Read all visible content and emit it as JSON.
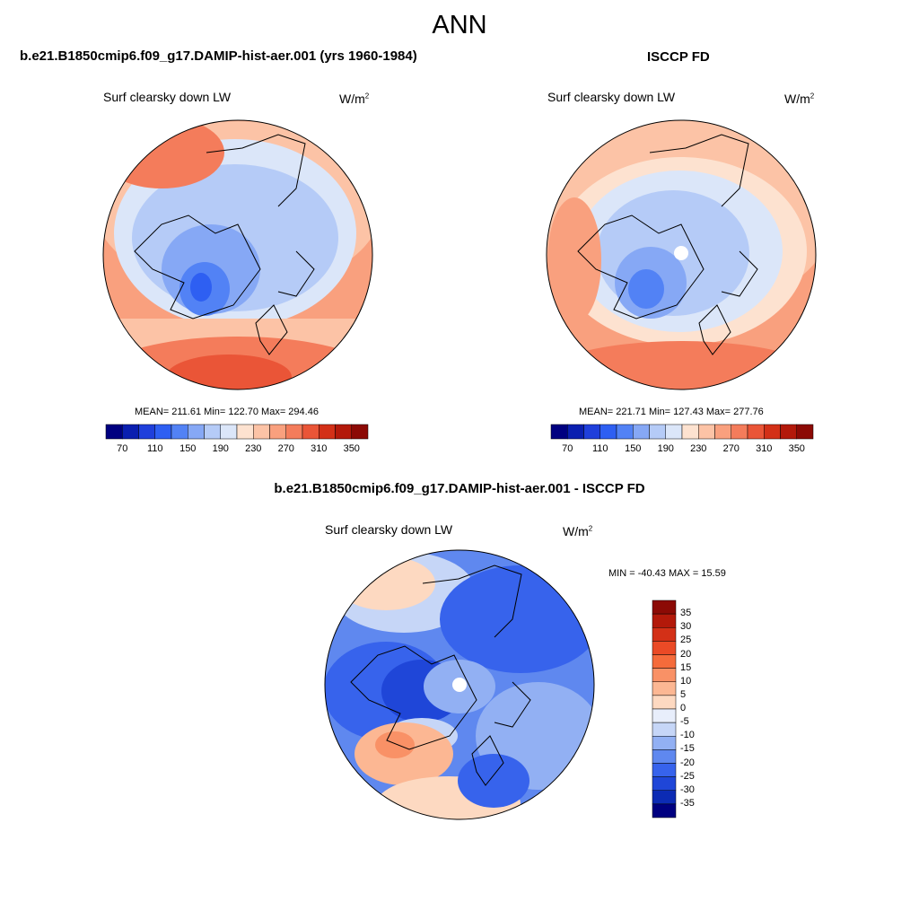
{
  "figure_title": "ANN",
  "panels": [
    {
      "title": "b.e21.B1850cmip6.f09_g17.DAMIP-hist-aer.001 (yrs 1960-1984)",
      "variable": "Surf clearsky down LW",
      "units_base": "W/m",
      "units_exp": "2",
      "stats": "MEAN= 211.61  Min= 122.70  Max= 294.46"
    },
    {
      "title": "ISCCP FD",
      "variable": "Surf clearsky down LW",
      "units_base": "W/m",
      "units_exp": "2",
      "stats": "MEAN= 221.71  Min= 127.43  Max= 277.76"
    },
    {
      "title": "b.e21.B1850cmip6.f09_g17.DAMIP-hist-aer.001 - ISCCP FD",
      "variable": "Surf clearsky down LW",
      "units_base": "W/m",
      "units_exp": "2",
      "stats": "MIN = -40.43 MAX =  15.59"
    }
  ],
  "colorbar_abs": {
    "labels": [
      "70",
      "110",
      "150",
      "190",
      "230",
      "270",
      "310",
      "350"
    ],
    "colors": [
      "#000080",
      "#0a1fb0",
      "#1f3fdb",
      "#2e5ff2",
      "#5282f5",
      "#86a8f5",
      "#b5cbf7",
      "#dbe6f9",
      "#fde2d0",
      "#fcc3a6",
      "#f9a07e",
      "#f47c5b",
      "#ea5537",
      "#d33017",
      "#b3190a",
      "#8c0a05"
    ]
  },
  "colorbar_diff": {
    "labels": [
      "35",
      "30",
      "25",
      "20",
      "15",
      "10",
      "5",
      "0",
      "-5",
      "-10",
      "-15",
      "-20",
      "-25",
      "-30",
      "-35"
    ],
    "colors": [
      "#8c0a05",
      "#b3190a",
      "#d33017",
      "#ea4a26",
      "#f56b3b",
      "#f99166",
      "#fcb793",
      "#fdd9c1",
      "#e8eefb",
      "#c6d6f7",
      "#92b0f3",
      "#5f88ef",
      "#3763ec",
      "#1f46d8",
      "#0c2bb4",
      "#000080"
    ]
  }
}
